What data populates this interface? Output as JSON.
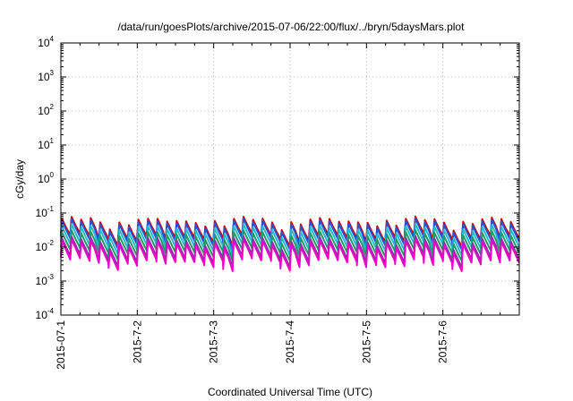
{
  "chart_data": {
    "type": "line",
    "title": "/data/run/goesPlots/archive/2015-07-06/22:00/flux/../bryn/5daysMars.plot",
    "xlabel": "Coordinated Universal Time (UTC)",
    "ylabel": "cGy/day",
    "yscale": "log",
    "ylim": [
      0.0001,
      10000
    ],
    "xlim": [
      "2015-07-01",
      "2015-07-07"
    ],
    "x_tick_labels": [
      "2015-07-1",
      "2015-7-2",
      "2015-7-3",
      "2015-7-4",
      "2015-7-5",
      "2015-7-6"
    ],
    "y_ticks": [
      {
        "base": "10",
        "exp": "4"
      },
      {
        "base": "10",
        "exp": "3"
      },
      {
        "base": "10",
        "exp": "2"
      },
      {
        "base": "10",
        "exp": "1"
      },
      {
        "base": "10",
        "exp": "0"
      },
      {
        "base": "10",
        "exp": "-1"
      },
      {
        "base": "10",
        "exp": "-2"
      },
      {
        "base": "10",
        "exp": "-3"
      },
      {
        "base": "10",
        "exp": "-4"
      }
    ],
    "grid": true,
    "cycles_per_day": 8,
    "series": [
      {
        "color": "#cc0000",
        "peak": 0.06,
        "trough": 0.02
      },
      {
        "color": "#2b50d8",
        "peak": 0.052,
        "trough": 0.016
      },
      {
        "color": "#22bbcc",
        "peak": 0.036,
        "trough": 0.011
      },
      {
        "color": "#229966",
        "peak": 0.024,
        "trough": 0.0075
      },
      {
        "color": "#8833aa",
        "peak": 0.016,
        "trough": 0.0048
      },
      {
        "color": "#ee00cc",
        "peak": 0.013,
        "trough": 0.0038
      }
    ]
  }
}
